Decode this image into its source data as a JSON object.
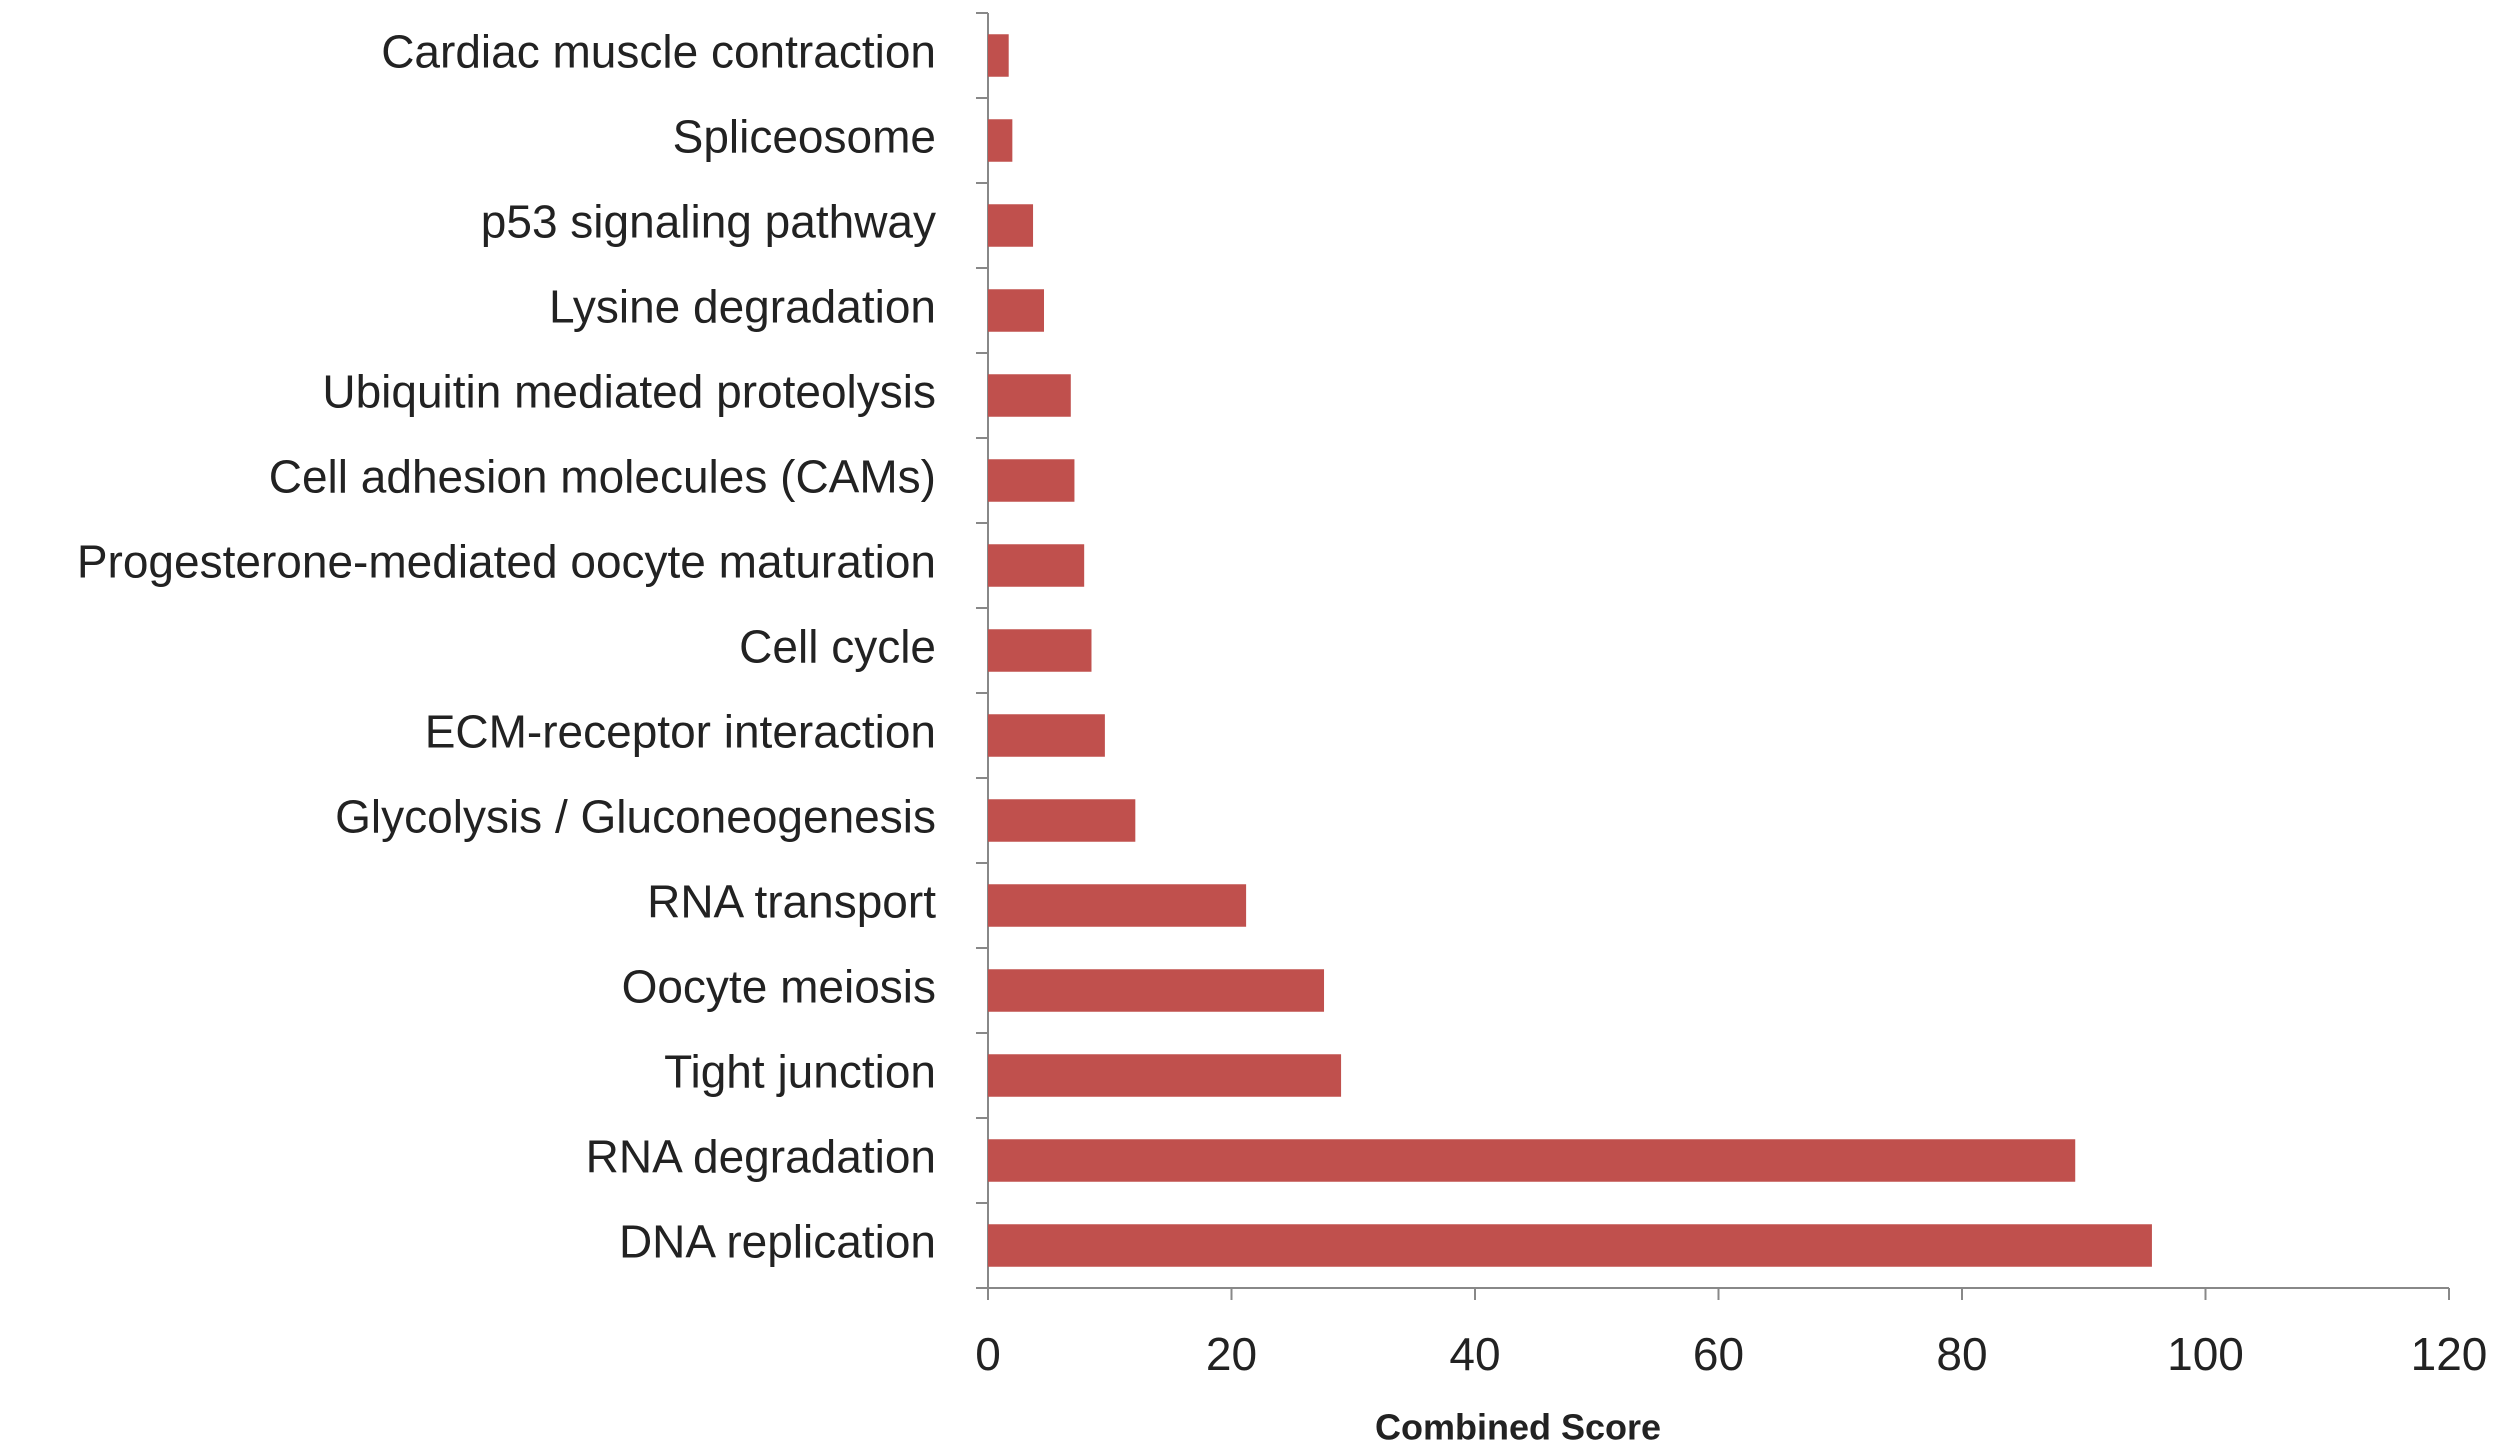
{
  "chart_data": {
    "type": "hbar",
    "categories": [
      "Cardiac muscle contraction",
      "Spliceosome",
      "p53 signaling pathway",
      "Lysine degradation",
      "Ubiquitin mediated proteolysis",
      "Cell adhesion molecules (CAMs)",
      "Progesterone-mediated oocyte maturation",
      "Cell cycle",
      "ECM-receptor interaction",
      "Glycolysis / Gluconeogenesis",
      "RNA transport",
      "Oocyte meiosis",
      "Tight junction",
      "RNA degradation",
      "DNA replication"
    ],
    "values": [
      1.7,
      2.0,
      3.7,
      4.6,
      6.8,
      7.1,
      7.9,
      8.5,
      9.6,
      12.1,
      21.2,
      27.6,
      29.0,
      89.3,
      95.6
    ],
    "color": "#c0504d",
    "xlabel": "Combined Score",
    "xlim": [
      0,
      120
    ],
    "xticks": [
      0,
      20,
      40,
      60,
      80,
      100,
      120
    ],
    "grid": false
  }
}
